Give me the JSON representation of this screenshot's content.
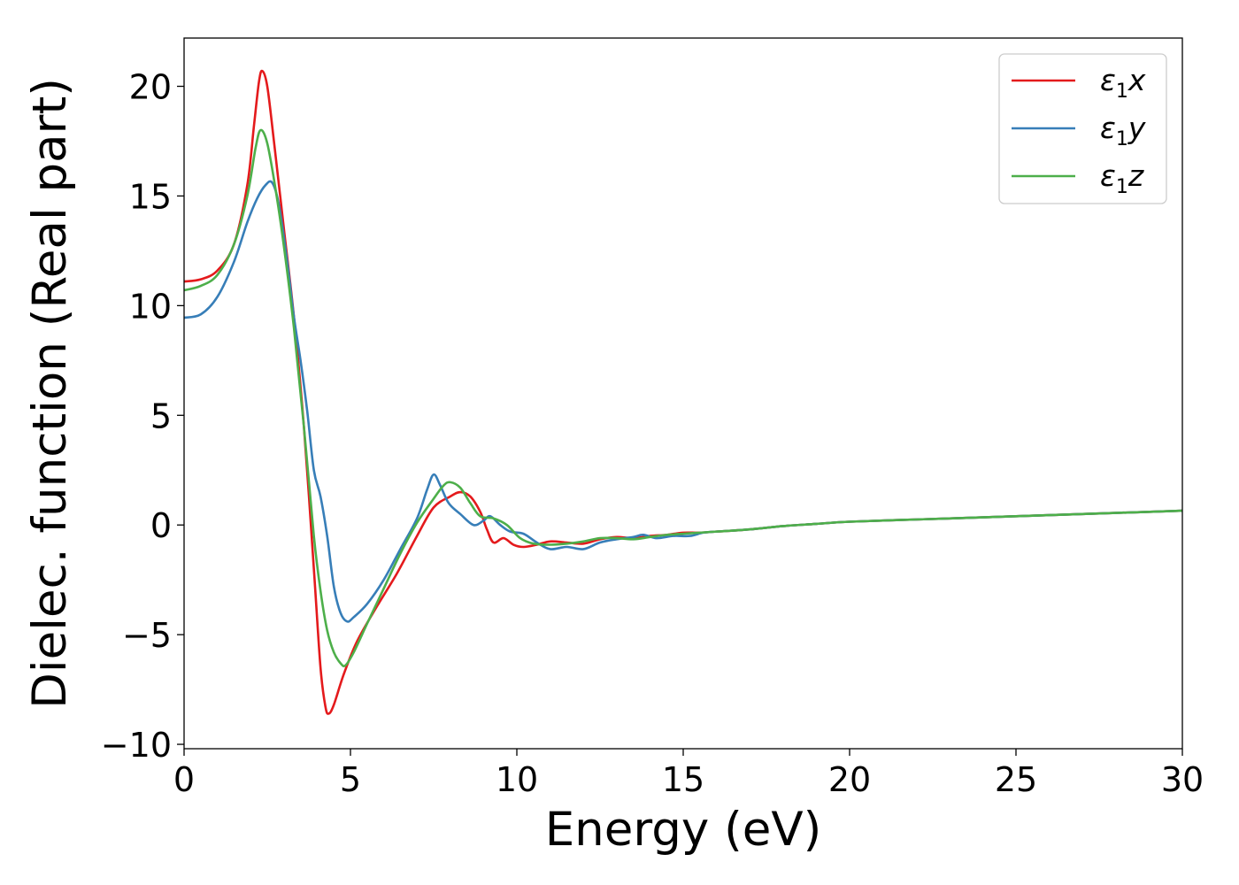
{
  "chart_data": {
    "type": "line",
    "title": "",
    "xlabel": "Energy (eV)",
    "ylabel": "Dielec. function (Real part)",
    "xlim": [
      0,
      30
    ],
    "ylim": [
      -10.2,
      22.2
    ],
    "xticks": [
      0,
      5,
      10,
      15,
      20,
      25,
      30
    ],
    "xtick_labels": [
      "0",
      "5",
      "10",
      "15",
      "20",
      "25",
      "30"
    ],
    "yticks": [
      -10,
      -5,
      0,
      5,
      10,
      15,
      20
    ],
    "ytick_labels": [
      "−10",
      "−5",
      "0",
      "5",
      "10",
      "15",
      "20"
    ],
    "grid": false,
    "legend_position": "top-right",
    "series": [
      {
        "name": "ε1x",
        "legend_main": "ε",
        "legend_sub": "1",
        "legend_tail": "x",
        "color": "#e41a1c",
        "points": [
          [
            0,
            11.1
          ],
          [
            0.5,
            11.2
          ],
          [
            1.0,
            11.6
          ],
          [
            1.5,
            12.8
          ],
          [
            1.9,
            15.5
          ],
          [
            2.1,
            18.2
          ],
          [
            2.25,
            20.2
          ],
          [
            2.35,
            20.7
          ],
          [
            2.5,
            20.0
          ],
          [
            2.7,
            17.5
          ],
          [
            3.0,
            13.5
          ],
          [
            3.3,
            9.5
          ],
          [
            3.6,
            4.5
          ],
          [
            3.9,
            -2.0
          ],
          [
            4.1,
            -6.5
          ],
          [
            4.25,
            -8.3
          ],
          [
            4.35,
            -8.6
          ],
          [
            4.5,
            -8.2
          ],
          [
            4.8,
            -6.8
          ],
          [
            5.2,
            -5.3
          ],
          [
            5.8,
            -3.7
          ],
          [
            6.4,
            -2.2
          ],
          [
            7.0,
            -0.5
          ],
          [
            7.5,
            0.8
          ],
          [
            8.0,
            1.3
          ],
          [
            8.3,
            1.5
          ],
          [
            8.6,
            1.3
          ],
          [
            8.9,
            0.6
          ],
          [
            9.1,
            -0.2
          ],
          [
            9.3,
            -0.8
          ],
          [
            9.6,
            -0.6
          ],
          [
            9.9,
            -0.9
          ],
          [
            10.2,
            -1.0
          ],
          [
            10.6,
            -0.9
          ],
          [
            11.0,
            -0.75
          ],
          [
            11.5,
            -0.8
          ],
          [
            12.0,
            -0.85
          ],
          [
            12.5,
            -0.65
          ],
          [
            13.0,
            -0.55
          ],
          [
            13.5,
            -0.6
          ],
          [
            14.0,
            -0.5
          ],
          [
            14.5,
            -0.45
          ],
          [
            15.0,
            -0.35
          ],
          [
            15.5,
            -0.35
          ],
          [
            16.0,
            -0.3
          ],
          [
            17.0,
            -0.2
          ],
          [
            18.0,
            -0.05
          ],
          [
            19.0,
            0.05
          ],
          [
            20.0,
            0.15
          ],
          [
            22.0,
            0.25
          ],
          [
            24.0,
            0.35
          ],
          [
            26.0,
            0.45
          ],
          [
            28.0,
            0.55
          ],
          [
            30.0,
            0.65
          ]
        ]
      },
      {
        "name": "ε1y",
        "legend_main": "ε",
        "legend_sub": "1",
        "legend_tail": "y",
        "color": "#377eb8",
        "points": [
          [
            0,
            9.45
          ],
          [
            0.5,
            9.6
          ],
          [
            1.0,
            10.4
          ],
          [
            1.5,
            12.0
          ],
          [
            1.9,
            13.8
          ],
          [
            2.2,
            14.9
          ],
          [
            2.45,
            15.5
          ],
          [
            2.65,
            15.6
          ],
          [
            2.85,
            14.6
          ],
          [
            3.1,
            12.0
          ],
          [
            3.3,
            9.5
          ],
          [
            3.5,
            7.5
          ],
          [
            3.7,
            5.2
          ],
          [
            3.9,
            2.5
          ],
          [
            4.1,
            1.3
          ],
          [
            4.3,
            -0.5
          ],
          [
            4.5,
            -2.8
          ],
          [
            4.7,
            -4.0
          ],
          [
            4.9,
            -4.4
          ],
          [
            5.1,
            -4.2
          ],
          [
            5.5,
            -3.6
          ],
          [
            6.0,
            -2.5
          ],
          [
            6.5,
            -1.1
          ],
          [
            7.0,
            0.3
          ],
          [
            7.3,
            1.6
          ],
          [
            7.5,
            2.3
          ],
          [
            7.7,
            1.8
          ],
          [
            7.95,
            1.0
          ],
          [
            8.3,
            0.5
          ],
          [
            8.7,
            0.0
          ],
          [
            9.0,
            0.2
          ],
          [
            9.2,
            0.4
          ],
          [
            9.5,
            0.0
          ],
          [
            9.8,
            -0.3
          ],
          [
            10.2,
            -0.4
          ],
          [
            10.6,
            -0.8
          ],
          [
            11.0,
            -1.1
          ],
          [
            11.5,
            -1.0
          ],
          [
            12.0,
            -1.1
          ],
          [
            12.5,
            -0.8
          ],
          [
            13.0,
            -0.65
          ],
          [
            13.5,
            -0.55
          ],
          [
            13.8,
            -0.45
          ],
          [
            14.2,
            -0.6
          ],
          [
            14.7,
            -0.5
          ],
          [
            15.2,
            -0.5
          ],
          [
            15.6,
            -0.35
          ],
          [
            16.0,
            -0.3
          ],
          [
            17.0,
            -0.2
          ],
          [
            18.0,
            -0.05
          ],
          [
            19.0,
            0.05
          ],
          [
            20.0,
            0.15
          ],
          [
            22.0,
            0.25
          ],
          [
            24.0,
            0.35
          ],
          [
            26.0,
            0.45
          ],
          [
            28.0,
            0.55
          ],
          [
            30.0,
            0.65
          ]
        ]
      },
      {
        "name": "ε1z",
        "legend_main": "ε",
        "legend_sub": "1",
        "legend_tail": "z",
        "color": "#4daf4a",
        "points": [
          [
            0,
            10.7
          ],
          [
            0.5,
            10.9
          ],
          [
            1.0,
            11.4
          ],
          [
            1.5,
            12.8
          ],
          [
            1.9,
            15.0
          ],
          [
            2.15,
            17.2
          ],
          [
            2.3,
            18.0
          ],
          [
            2.5,
            17.4
          ],
          [
            2.75,
            15.3
          ],
          [
            3.0,
            12.7
          ],
          [
            3.3,
            9.0
          ],
          [
            3.6,
            4.5
          ],
          [
            3.9,
            -0.5
          ],
          [
            4.1,
            -3.0
          ],
          [
            4.3,
            -4.8
          ],
          [
            4.5,
            -5.8
          ],
          [
            4.7,
            -6.3
          ],
          [
            4.85,
            -6.4
          ],
          [
            5.1,
            -5.8
          ],
          [
            5.5,
            -4.5
          ],
          [
            6.0,
            -2.9
          ],
          [
            6.5,
            -1.3
          ],
          [
            7.0,
            0.1
          ],
          [
            7.5,
            1.2
          ],
          [
            7.8,
            1.8
          ],
          [
            8.0,
            1.95
          ],
          [
            8.3,
            1.7
          ],
          [
            8.6,
            1.0
          ],
          [
            8.9,
            0.4
          ],
          [
            9.3,
            0.3
          ],
          [
            9.7,
            0.0
          ],
          [
            10.1,
            -0.6
          ],
          [
            10.5,
            -0.85
          ],
          [
            11.0,
            -0.9
          ],
          [
            11.5,
            -0.85
          ],
          [
            12.0,
            -0.75
          ],
          [
            12.5,
            -0.6
          ],
          [
            13.0,
            -0.6
          ],
          [
            13.5,
            -0.65
          ],
          [
            14.0,
            -0.55
          ],
          [
            14.5,
            -0.45
          ],
          [
            15.0,
            -0.4
          ],
          [
            15.5,
            -0.35
          ],
          [
            16.0,
            -0.3
          ],
          [
            17.0,
            -0.2
          ],
          [
            18.0,
            -0.05
          ],
          [
            19.0,
            0.05
          ],
          [
            20.0,
            0.15
          ],
          [
            22.0,
            0.25
          ],
          [
            24.0,
            0.35
          ],
          [
            26.0,
            0.45
          ],
          [
            28.0,
            0.55
          ],
          [
            30.0,
            0.65
          ]
        ]
      }
    ]
  }
}
